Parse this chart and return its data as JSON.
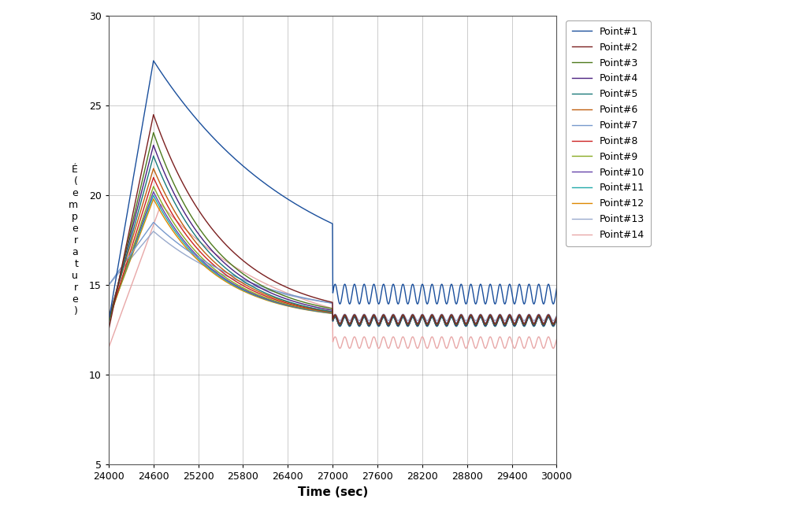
{
  "title": "",
  "xlabel": "Time (sec)",
  "xlim": [
    24000,
    30000
  ],
  "ylim": [
    5,
    30
  ],
  "yticks": [
    5,
    10,
    15,
    20,
    25,
    30
  ],
  "xticks": [
    24000,
    24600,
    25200,
    25800,
    26400,
    27000,
    27600,
    28200,
    28800,
    29400,
    30000
  ],
  "series_colors": [
    "#1a4f9c",
    "#7b2020",
    "#4e7a1e",
    "#4b2080",
    "#1a7a7a",
    "#c06010",
    "#7799cc",
    "#cc2222",
    "#88aa22",
    "#6644aa",
    "#22aaaa",
    "#dd8800",
    "#99aacc",
    "#e8a8a8"
  ],
  "series_labels": [
    "Point#1",
    "Point#2",
    "Point#3",
    "Point#4",
    "Point#5",
    "Point#6",
    "Point#7",
    "Point#8",
    "Point#9",
    "Point#10",
    "Point#11",
    "Point#12",
    "Point#13",
    "Point#14"
  ]
}
